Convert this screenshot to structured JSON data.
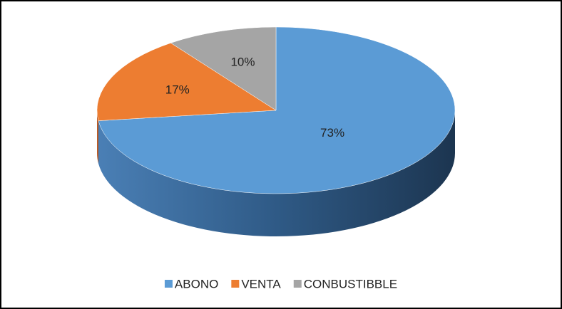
{
  "chart_data": {
    "type": "pie",
    "categories": [
      "ABONO",
      "VENTA",
      "CONBUSTIBBLE"
    ],
    "values": [
      73,
      17,
      10
    ],
    "value_labels": [
      "73%",
      "17%",
      "10%"
    ],
    "colors": [
      "#5b9bd5",
      "#ed7d31",
      "#a5a5a5"
    ],
    "legend": "bottom"
  }
}
